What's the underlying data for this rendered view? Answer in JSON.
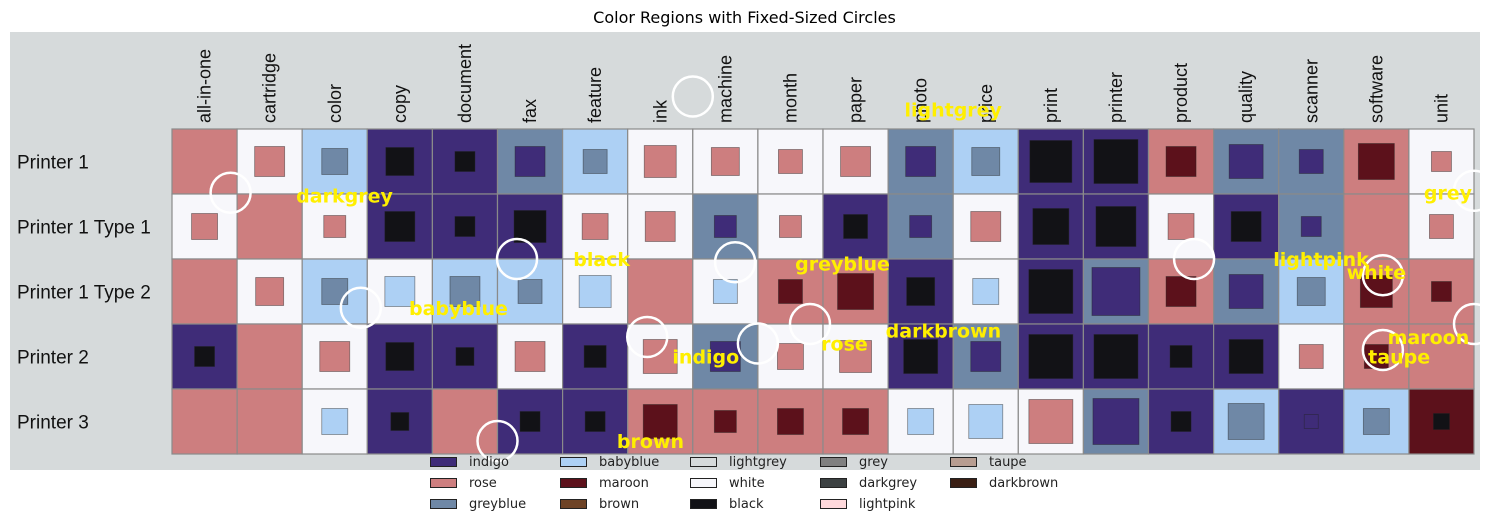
{
  "chart_data": {
    "type": "heatmap",
    "title": "Color Regions with Fixed-Sized Circles",
    "columns": [
      "all-in-one",
      "cartridge",
      "color",
      "copy",
      "document",
      "fax",
      "feature",
      "ink",
      "machine",
      "month",
      "paper",
      "photo",
      "price",
      "print",
      "printer",
      "product",
      "quality",
      "scanner",
      "software",
      "unit"
    ],
    "rows": [
      "Printer 1",
      "Printer 1 Type 1",
      "Printer 1 Type 2",
      "Printer 2",
      "Printer 3"
    ],
    "palette": {
      "indigo": "#3f2c78",
      "rose": "#cd7e7f",
      "greyblue": "#6f88a6",
      "babyblue": "#add0f4",
      "maroon": "#5c111b",
      "brown": "#6e4326",
      "lightgrey": "#d6dadb",
      "white": "#f7f7fb",
      "black": "#121216",
      "grey": "#808080",
      "darkgrey": "#3c4142",
      "lightpink": "#ffd9dc",
      "taupe": "#b79d91",
      "darkbrown": "#3a1f14"
    },
    "cells": [
      [
        [
          "rose",
          null,
          0
        ],
        [
          "white",
          "rose",
          30
        ],
        [
          "babyblue",
          "greyblue",
          26
        ],
        [
          "indigo",
          "black",
          28
        ],
        [
          "indigo",
          "black",
          20
        ],
        [
          "greyblue",
          "indigo",
          30
        ],
        [
          "babyblue",
          "greyblue",
          24
        ],
        [
          "white",
          "rose",
          32
        ],
        [
          "white",
          "rose",
          28
        ],
        [
          "white",
          "rose",
          24
        ],
        [
          "white",
          "rose",
          30
        ],
        [
          "greyblue",
          "indigo",
          30
        ],
        [
          "babyblue",
          "greyblue",
          28
        ],
        [
          "indigo",
          "black",
          42
        ],
        [
          "indigo",
          "black",
          44
        ],
        [
          "rose",
          "maroon",
          30
        ],
        [
          "greyblue",
          "indigo",
          34
        ],
        [
          "greyblue",
          "indigo",
          24
        ],
        [
          "rose",
          "maroon",
          36
        ],
        [
          "white",
          "rose",
          20
        ]
      ],
      [
        [
          "white",
          "rose",
          26
        ],
        [
          "rose",
          null,
          0
        ],
        [
          "white",
          "rose",
          22
        ],
        [
          "indigo",
          "black",
          30
        ],
        [
          "indigo",
          "black",
          20
        ],
        [
          "indigo",
          "black",
          32
        ],
        [
          "white",
          "rose",
          26
        ],
        [
          "white",
          "rose",
          30
        ],
        [
          "greyblue",
          "indigo",
          22
        ],
        [
          "white",
          "rose",
          22
        ],
        [
          "indigo",
          "black",
          24
        ],
        [
          "greyblue",
          "indigo",
          22
        ],
        [
          "white",
          "rose",
          30
        ],
        [
          "indigo",
          "black",
          36
        ],
        [
          "indigo",
          "black",
          40
        ],
        [
          "white",
          "rose",
          26
        ],
        [
          "indigo",
          "black",
          30
        ],
        [
          "greyblue",
          "indigo",
          20
        ],
        [
          "rose",
          null,
          0
        ],
        [
          "white",
          "rose",
          24
        ]
      ],
      [
        [
          "rose",
          null,
          0
        ],
        [
          "white",
          "rose",
          28
        ],
        [
          "babyblue",
          "greyblue",
          26
        ],
        [
          "white",
          "babyblue",
          30
        ],
        [
          "babyblue",
          "greyblue",
          30
        ],
        [
          "babyblue",
          "greyblue",
          24
        ],
        [
          "white",
          "babyblue",
          32
        ],
        [
          "rose",
          null,
          0
        ],
        [
          "white",
          "babyblue",
          24
        ],
        [
          "rose",
          "maroon",
          24
        ],
        [
          "rose",
          "maroon",
          36
        ],
        [
          "indigo",
          "black",
          28
        ],
        [
          "white",
          "babyblue",
          26
        ],
        [
          "indigo",
          "black",
          44
        ],
        [
          "greyblue",
          "indigo",
          48
        ],
        [
          "rose",
          "maroon",
          30
        ],
        [
          "greyblue",
          "indigo",
          34
        ],
        [
          "babyblue",
          "greyblue",
          28
        ],
        [
          "rose",
          "maroon",
          32
        ],
        [
          "rose",
          "maroon",
          20
        ]
      ],
      [
        [
          "indigo",
          "black",
          20
        ],
        [
          "rose",
          null,
          0
        ],
        [
          "white",
          "rose",
          30
        ],
        [
          "indigo",
          "black",
          28
        ],
        [
          "indigo",
          "black",
          18
        ],
        [
          "white",
          "rose",
          30
        ],
        [
          "indigo",
          "black",
          22
        ],
        [
          "white",
          "rose",
          34
        ],
        [
          "greyblue",
          "indigo",
          30
        ],
        [
          "white",
          "rose",
          26
        ],
        [
          "white",
          "rose",
          32
        ],
        [
          "indigo",
          "black",
          34
        ],
        [
          "greyblue",
          "indigo",
          30
        ],
        [
          "indigo",
          "black",
          44
        ],
        [
          "indigo",
          "black",
          44
        ],
        [
          "indigo",
          "black",
          22
        ],
        [
          "indigo",
          "black",
          34
        ],
        [
          "white",
          "rose",
          24
        ],
        [
          "rose",
          "maroon",
          24
        ],
        [
          "rose",
          null,
          0
        ]
      ],
      [
        [
          "rose",
          null,
          0
        ],
        [
          "rose",
          null,
          0
        ],
        [
          "white",
          "babyblue",
          26
        ],
        [
          "indigo",
          "black",
          18
        ],
        [
          "rose",
          null,
          0
        ],
        [
          "indigo",
          "black",
          20
        ],
        [
          "indigo",
          "black",
          20
        ],
        [
          "rose",
          "maroon",
          34
        ],
        [
          "rose",
          "maroon",
          22
        ],
        [
          "rose",
          "maroon",
          26
        ],
        [
          "rose",
          "maroon",
          26
        ],
        [
          "white",
          "babyblue",
          26
        ],
        [
          "white",
          "babyblue",
          34
        ],
        [
          "white",
          "rose",
          44
        ],
        [
          "greyblue",
          "indigo",
          46
        ],
        [
          "indigo",
          "black",
          20
        ],
        [
          "babyblue",
          "greyblue",
          36
        ],
        [
          "indigo",
          "indigo",
          14
        ],
        [
          "babyblue",
          "greyblue",
          26
        ],
        [
          "maroon",
          "black",
          16
        ]
      ]
    ],
    "labels": [
      {
        "text": "lightgrey",
        "x": 12.0,
        "y": -0.3
      },
      {
        "text": "darkgrey",
        "x": 2.65,
        "y": 1.02
      },
      {
        "text": "grey",
        "x": 19.6,
        "y": 0.98
      },
      {
        "text": "black",
        "x": 6.6,
        "y": 2.0
      },
      {
        "text": "greyblue",
        "x": 10.3,
        "y": 2.07
      },
      {
        "text": "lightpink",
        "x": 17.65,
        "y": 2.0
      },
      {
        "text": "white",
        "x": 18.5,
        "y": 2.2
      },
      {
        "text": "babyblue",
        "x": 4.4,
        "y": 2.75
      },
      {
        "text": "darkbrown",
        "x": 11.85,
        "y": 3.1
      },
      {
        "text": "maroon",
        "x": 19.3,
        "y": 3.2
      },
      {
        "text": "rose",
        "x": 10.33,
        "y": 3.3
      },
      {
        "text": "indigo",
        "x": 8.2,
        "y": 3.5
      },
      {
        "text": "taupe",
        "x": 18.85,
        "y": 3.5
      },
      {
        "text": "brown",
        "x": 7.35,
        "y": 4.8
      }
    ],
    "circles": [
      {
        "x": 8.0,
        "y": -0.5
      },
      {
        "x": 0.9,
        "y": 0.98
      },
      {
        "x": 20.0,
        "y": 0.95
      },
      {
        "x": 5.3,
        "y": 2.0
      },
      {
        "x": 8.65,
        "y": 2.05
      },
      {
        "x": 15.7,
        "y": 2.0
      },
      {
        "x": 18.6,
        "y": 2.25
      },
      {
        "x": 2.9,
        "y": 2.75
      },
      {
        "x": 9.8,
        "y": 3.0
      },
      {
        "x": 20.0,
        "y": 3.0
      },
      {
        "x": 7.3,
        "y": 3.2
      },
      {
        "x": 9.0,
        "y": 3.3
      },
      {
        "x": 18.6,
        "y": 3.4
      },
      {
        "x": 5.0,
        "y": 4.8
      }
    ],
    "legend": [
      {
        "name": "indigo"
      },
      {
        "name": "rose"
      },
      {
        "name": "greyblue"
      },
      {
        "name": "babyblue"
      },
      {
        "name": "maroon"
      },
      {
        "name": "brown"
      },
      {
        "name": "lightgrey"
      },
      {
        "name": "white"
      },
      {
        "name": "black"
      },
      {
        "name": "grey"
      },
      {
        "name": "darkgrey"
      },
      {
        "name": "lightpink"
      },
      {
        "name": "taupe"
      },
      {
        "name": "darkbrown"
      }
    ],
    "legend_placement": "bottom-center",
    "label_color": "#ffef00",
    "circle_color": "#ffffff"
  }
}
